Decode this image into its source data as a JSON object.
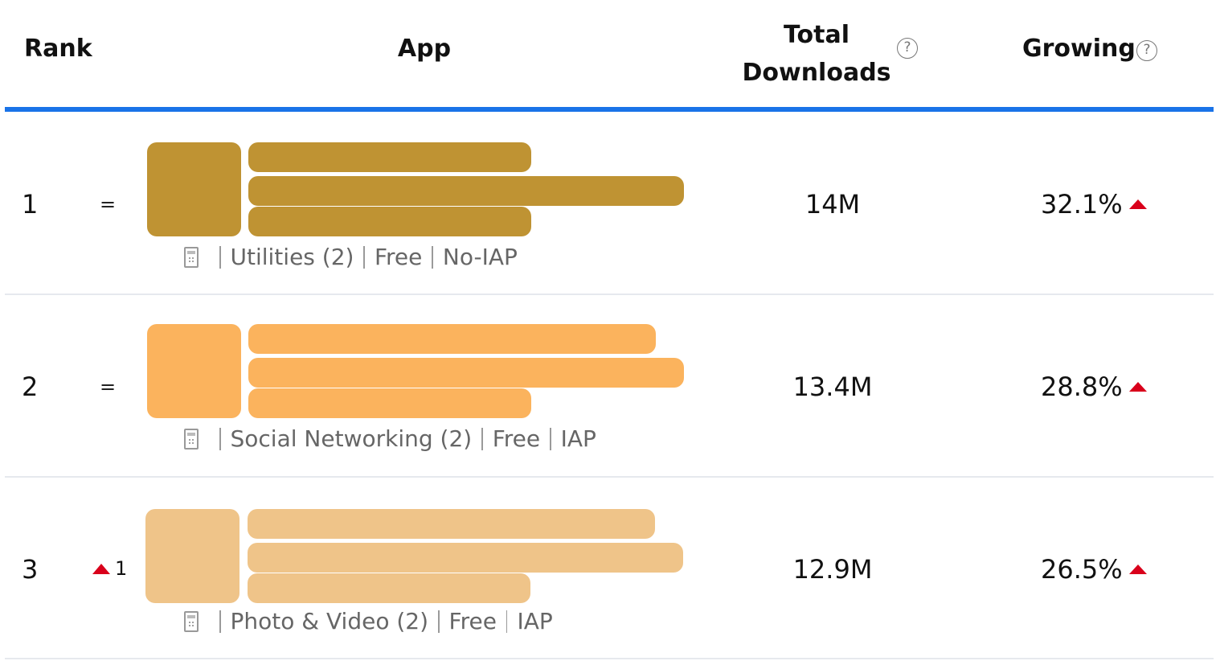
{
  "header": {
    "rank": "Rank",
    "app": "App",
    "total_line1": "Total",
    "total_line2": "Downloads",
    "growing": "Growing",
    "help_glyph": "?"
  },
  "icons": {
    "help": "question-circle-icon",
    "device": "device-icon",
    "rank_up": "triangle-up-icon",
    "growth_up": "triangle-up-icon"
  },
  "colors": {
    "header_divider": "#1a73e8",
    "up_arrow": "#d9001b"
  },
  "rows": [
    {
      "rank": "1",
      "change": "=",
      "change_type": "same",
      "app_color": "#bf9333",
      "category": "Utilities (2)",
      "price": "Free",
      "iap": "No-IAP",
      "downloads": "14M",
      "growing": "32.1%"
    },
    {
      "rank": "2",
      "change": "=",
      "change_type": "same",
      "app_color": "#fbb35d",
      "category": "Social Networking (2)",
      "price": "Free",
      "iap": "IAP",
      "downloads": "13.4M",
      "growing": "28.8%"
    },
    {
      "rank": "3",
      "change": "1",
      "change_type": "up",
      "app_color": "#efc489",
      "category": "Photo & Video (2)",
      "price": "Free",
      "iap": "IAP",
      "downloads": "12.9M",
      "growing": "26.5%"
    }
  ]
}
